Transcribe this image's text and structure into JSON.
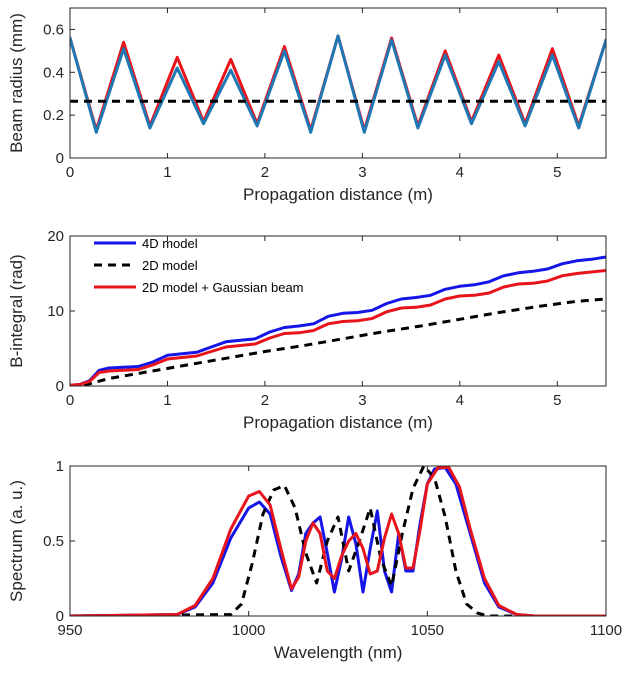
{
  "colors": {
    "red": "#e8141b",
    "lightblue": "#1f77b4",
    "blue": "#1515e8",
    "black": "#000000",
    "axis": "#262626"
  },
  "chart_data": [
    {
      "id": "beam-radius",
      "type": "line",
      "xlabel": "Propagation distance (m)",
      "ylabel": "Beam radius (mm)",
      "xlim": [
        0,
        5.5
      ],
      "ylim": [
        0,
        0.7
      ],
      "xticks": [
        0,
        1,
        2,
        3,
        4,
        5
      ],
      "yticks": [
        0,
        0.2,
        0.4,
        0.6
      ],
      "xticklabels": [
        "0",
        "1",
        "2",
        "3",
        "4",
        "5"
      ],
      "yticklabels": [
        "0",
        "0.2",
        "0.4",
        "0.6"
      ],
      "grid": false,
      "series": [
        {
          "color": "red",
          "style": "solid",
          "x": [
            0,
            0.27,
            0.55,
            0.82,
            1.1,
            1.37,
            1.65,
            1.92,
            2.2,
            2.47,
            2.75,
            3.02,
            3.3,
            3.57,
            3.85,
            4.12,
            4.4,
            4.67,
            4.95,
            5.22,
            5.5
          ],
          "y": [
            0.56,
            0.13,
            0.54,
            0.15,
            0.47,
            0.17,
            0.46,
            0.16,
            0.52,
            0.13,
            0.57,
            0.13,
            0.56,
            0.15,
            0.5,
            0.17,
            0.48,
            0.16,
            0.51,
            0.15,
            0.55
          ]
        },
        {
          "color": "lightblue",
          "style": "solid",
          "x": [
            0,
            0.27,
            0.55,
            0.82,
            1.1,
            1.37,
            1.65,
            1.92,
            2.2,
            2.47,
            2.75,
            3.02,
            3.3,
            3.57,
            3.85,
            4.12,
            4.4,
            4.67,
            4.95,
            5.22,
            5.5
          ],
          "y": [
            0.56,
            0.12,
            0.51,
            0.14,
            0.42,
            0.16,
            0.41,
            0.15,
            0.5,
            0.12,
            0.57,
            0.12,
            0.55,
            0.14,
            0.48,
            0.16,
            0.45,
            0.15,
            0.48,
            0.14,
            0.55
          ]
        },
        {
          "color": "black",
          "style": "dashed",
          "x": [
            0,
            5.5
          ],
          "y": [
            0.265,
            0.265
          ]
        }
      ]
    },
    {
      "id": "b-integral",
      "type": "line",
      "xlabel": "Propagation distance (m)",
      "ylabel": "B-integral (rad)",
      "xlim": [
        0,
        5.5
      ],
      "ylim": [
        0,
        20
      ],
      "xticks": [
        0,
        1,
        2,
        3,
        4,
        5
      ],
      "yticks": [
        0,
        10,
        20
      ],
      "xticklabels": [
        "0",
        "1",
        "2",
        "3",
        "4",
        "5"
      ],
      "yticklabels": [
        "0",
        "10",
        "20"
      ],
      "grid": false,
      "legend": "top-left",
      "series": [
        {
          "name": "4D model",
          "color": "blue",
          "style": "solid",
          "x": [
            0,
            0.1,
            0.2,
            0.3,
            0.4,
            0.55,
            0.7,
            0.85,
            1.0,
            1.15,
            1.3,
            1.45,
            1.6,
            1.75,
            1.9,
            2.05,
            2.2,
            2.35,
            2.5,
            2.65,
            2.8,
            2.95,
            3.1,
            3.25,
            3.4,
            3.55,
            3.7,
            3.85,
            4.0,
            4.15,
            4.3,
            4.45,
            4.6,
            4.75,
            4.9,
            5.05,
            5.2,
            5.35,
            5.5
          ],
          "y": [
            0.1,
            0.2,
            0.7,
            2.1,
            2.4,
            2.5,
            2.6,
            3.2,
            4.1,
            4.3,
            4.5,
            5.2,
            5.9,
            6.1,
            6.3,
            7.2,
            7.8,
            8.0,
            8.3,
            9.3,
            9.7,
            9.8,
            10.1,
            11.0,
            11.6,
            11.8,
            12.1,
            12.9,
            13.3,
            13.5,
            13.9,
            14.7,
            15.1,
            15.3,
            15.6,
            16.3,
            16.7,
            16.9,
            17.2
          ]
        },
        {
          "name": "2D model",
          "color": "black",
          "style": "dashed",
          "x": [
            0,
            0.2,
            0.4,
            0.8,
            1.2,
            1.6,
            2.0,
            2.4,
            2.8,
            3.2,
            3.6,
            4.0,
            4.4,
            4.8,
            5.2,
            5.5
          ],
          "y": [
            0,
            0.3,
            1.0,
            1.9,
            2.8,
            3.7,
            4.6,
            5.4,
            6.3,
            7.2,
            8.0,
            8.9,
            9.8,
            10.6,
            11.3,
            11.6
          ]
        },
        {
          "name": "2D model + Gaussian beam",
          "color": "red",
          "style": "solid",
          "x": [
            0,
            0.1,
            0.2,
            0.3,
            0.4,
            0.55,
            0.7,
            0.85,
            1.0,
            1.15,
            1.3,
            1.45,
            1.6,
            1.75,
            1.9,
            2.05,
            2.2,
            2.35,
            2.5,
            2.65,
            2.8,
            2.95,
            3.1,
            3.25,
            3.4,
            3.55,
            3.7,
            3.85,
            4.0,
            4.15,
            4.3,
            4.45,
            4.6,
            4.75,
            4.9,
            5.05,
            5.2,
            5.35,
            5.5
          ],
          "y": [
            0.1,
            0.2,
            0.6,
            1.8,
            2.0,
            2.1,
            2.2,
            2.8,
            3.6,
            3.8,
            4.0,
            4.6,
            5.2,
            5.4,
            5.6,
            6.4,
            7.0,
            7.1,
            7.4,
            8.3,
            8.6,
            8.7,
            9.0,
            9.9,
            10.4,
            10.5,
            10.8,
            11.6,
            12.0,
            12.1,
            12.4,
            13.2,
            13.6,
            13.7,
            14.0,
            14.7,
            15.0,
            15.2,
            15.4
          ]
        }
      ]
    },
    {
      "id": "spectrum",
      "type": "line",
      "xlabel": "Wavelength (nm)",
      "ylabel": "Spectrum (a. u.)",
      "xlim": [
        950,
        1100
      ],
      "ylim": [
        0,
        1
      ],
      "xticks": [
        950,
        1000,
        1050,
        1100
      ],
      "yticks": [
        0,
        0.5,
        1
      ],
      "xticklabels": [
        "950",
        "1000",
        "1050",
        "1100"
      ],
      "yticklabels": [
        "0",
        "0.5",
        "1"
      ],
      "grid": false,
      "series": [
        {
          "color": "blue",
          "style": "solid",
          "x": [
            950,
            980,
            985,
            990,
            995,
            1000,
            1003,
            1006,
            1009,
            1012,
            1014,
            1016,
            1018,
            1020,
            1022,
            1024,
            1026,
            1028,
            1030,
            1032,
            1034,
            1036,
            1038,
            1040,
            1042,
            1044,
            1046,
            1048,
            1050,
            1052,
            1055,
            1058,
            1062,
            1066,
            1070,
            1075,
            1080,
            1100
          ],
          "y": [
            0,
            0.01,
            0.06,
            0.22,
            0.52,
            0.72,
            0.76,
            0.68,
            0.4,
            0.17,
            0.28,
            0.55,
            0.62,
            0.66,
            0.42,
            0.16,
            0.38,
            0.66,
            0.48,
            0.16,
            0.45,
            0.7,
            0.3,
            0.16,
            0.55,
            0.3,
            0.3,
            0.62,
            0.88,
            0.98,
            0.99,
            0.88,
            0.55,
            0.22,
            0.06,
            0.01,
            0,
            0
          ]
        },
        {
          "color": "black",
          "style": "dashed",
          "x": [
            950,
            995,
            998,
            1001,
            1004,
            1007,
            1010,
            1013,
            1016,
            1019,
            1022,
            1025,
            1028,
            1031,
            1034,
            1037,
            1040,
            1043,
            1046,
            1049,
            1052,
            1055,
            1058,
            1061,
            1064,
            1067,
            1070,
            1100
          ],
          "y": [
            0,
            0.01,
            0.08,
            0.35,
            0.68,
            0.84,
            0.87,
            0.72,
            0.42,
            0.22,
            0.5,
            0.66,
            0.3,
            0.5,
            0.72,
            0.38,
            0.2,
            0.55,
            0.85,
            1.0,
            0.92,
            0.66,
            0.3,
            0.08,
            0.02,
            0,
            0,
            0
          ]
        },
        {
          "color": "red",
          "style": "solid",
          "x": [
            950,
            980,
            985,
            990,
            995,
            1000,
            1003,
            1006,
            1009,
            1012,
            1014,
            1016,
            1018,
            1020,
            1022,
            1024,
            1026,
            1028,
            1030,
            1032,
            1034,
            1036,
            1038,
            1040,
            1042,
            1044,
            1046,
            1048,
            1050,
            1053,
            1056,
            1059,
            1062,
            1066,
            1070,
            1075,
            1080,
            1100
          ],
          "y": [
            0,
            0.01,
            0.07,
            0.25,
            0.58,
            0.8,
            0.83,
            0.74,
            0.45,
            0.18,
            0.26,
            0.5,
            0.62,
            0.55,
            0.3,
            0.25,
            0.4,
            0.5,
            0.55,
            0.45,
            0.28,
            0.3,
            0.52,
            0.68,
            0.55,
            0.32,
            0.32,
            0.58,
            0.88,
            0.99,
            0.99,
            0.86,
            0.58,
            0.25,
            0.07,
            0.01,
            0,
            0
          ]
        }
      ]
    }
  ]
}
